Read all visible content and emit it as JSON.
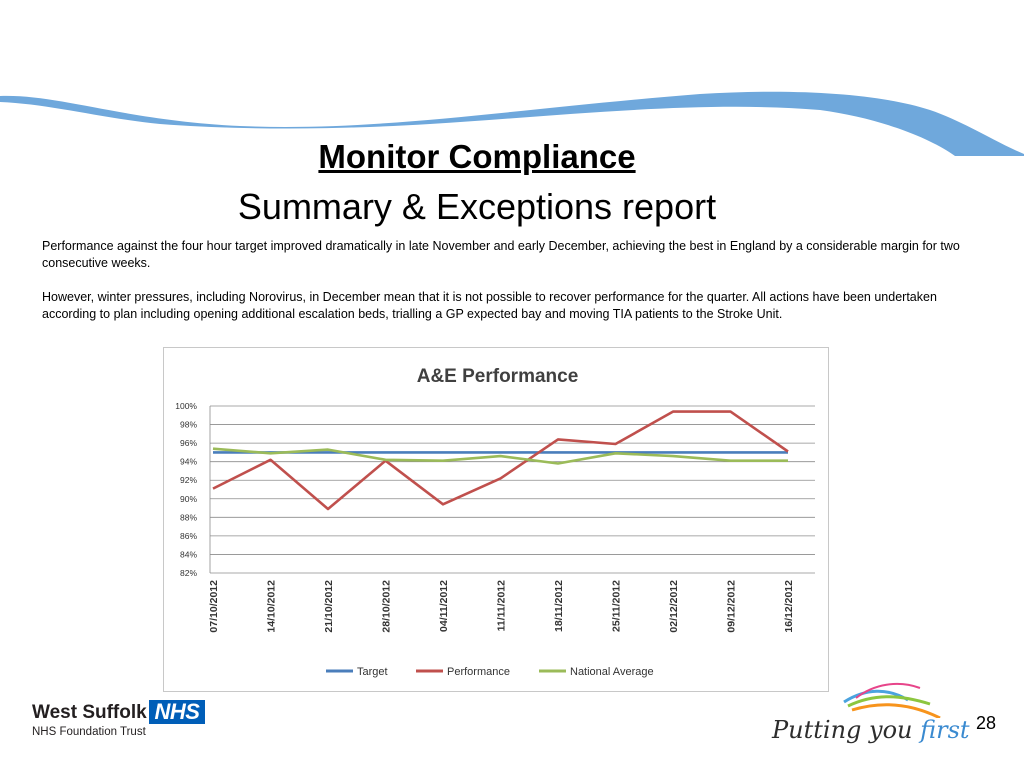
{
  "slide": {
    "title": "Monitor Compliance",
    "subtitle": "Summary & Exceptions report",
    "paragraphs": [
      "Performance against the four hour target improved dramatically in late November and early December, achieving the best in England by a considerable margin for two consecutive weeks.",
      "However, winter pressures, including Norovirus, in December mean that it is not possible to recover performance for the quarter.   All actions have been undertaken according to plan including opening additional escalation beds, trialling a GP expected bay and moving TIA patients to the Stroke Unit."
    ],
    "page_number": "28",
    "accent_color": "#6fa8dc"
  },
  "footer": {
    "org_name": "West Suffolk",
    "nhs": "NHS",
    "org_sub": "NHS Foundation Trust",
    "tagline_main": "Putting you ",
    "tagline_emph": "first",
    "nhs_color": "#005eb8"
  },
  "chart_data": {
    "type": "line",
    "title": "A&E Performance",
    "x": [
      "07/10/2012",
      "14/10/2012",
      "21/10/2012",
      "28/10/2012",
      "04/11/2012",
      "11/11/2012",
      "18/11/2012",
      "25/11/2012",
      "02/12/2012",
      "09/12/2012",
      "16/12/2012"
    ],
    "series": [
      {
        "name": "Target",
        "color": "#4a7ebb",
        "values": [
          95,
          95,
          95,
          95,
          95,
          95,
          95,
          95,
          95,
          95,
          95
        ]
      },
      {
        "name": "Performance",
        "color": "#c0504d",
        "values": [
          91.1,
          94.2,
          88.9,
          94.1,
          89.4,
          92.2,
          96.4,
          95.9,
          99.4,
          99.4,
          95.1
        ]
      },
      {
        "name": "National Average",
        "color": "#9bbb59",
        "values": [
          95.4,
          94.9,
          95.3,
          94.2,
          94.1,
          94.6,
          93.8,
          94.9,
          94.6,
          94.1,
          94.1
        ]
      }
    ],
    "ylim": [
      82,
      100
    ],
    "yticks": [
      "82%",
      "84%",
      "86%",
      "88%",
      "90%",
      "92%",
      "94%",
      "96%",
      "98%",
      "100%"
    ],
    "grid": true,
    "legend": "bottom"
  }
}
